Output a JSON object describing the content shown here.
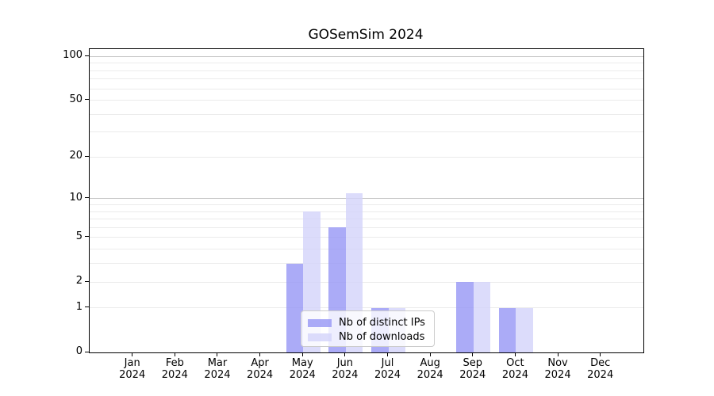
{
  "chart_data": {
    "type": "bar",
    "title": "GOSemSim 2024",
    "x_tick_year": "2024",
    "categories": [
      "Jan",
      "Feb",
      "Mar",
      "Apr",
      "May",
      "Jun",
      "Jul",
      "Aug",
      "Sep",
      "Oct",
      "Nov",
      "Dec"
    ],
    "series": [
      {
        "key": "distinct-ips",
        "name": "Nb of distinct IPs",
        "color": "rgba(150,150,245,0.8)",
        "values": [
          0,
          0,
          0,
          0,
          3,
          6,
          1,
          0,
          2,
          1,
          0,
          0
        ]
      },
      {
        "key": "downloads",
        "name": "Nb of downloads",
        "color": "rgba(211,211,250,0.8)",
        "values": [
          0,
          0,
          0,
          0,
          8,
          11,
          1,
          0,
          2,
          1,
          0,
          0
        ]
      }
    ],
    "xlabel": "",
    "ylabel": "",
    "yscale": "log1p",
    "ylim": [
      0,
      112.3
    ],
    "y_ticks": [
      0,
      1,
      2,
      5,
      10,
      20,
      50,
      100
    ],
    "gridlines": {
      "minor": [
        1,
        2,
        3,
        4,
        5,
        6,
        7,
        8,
        9,
        20,
        30,
        40,
        50,
        60,
        70,
        80,
        90
      ],
      "major": [
        10,
        100
      ]
    },
    "legend_position": "lower center",
    "grid_on": true
  },
  "colors": {
    "background": "#ffffff",
    "axis": "#000000",
    "grid_minor": "#ebebeb",
    "grid_major": "#c6c6c6",
    "legend_border": "#cccccc",
    "bar_distinct_ips": "rgba(150,150,245,0.8)",
    "bar_downloads": "rgba(211,211,250,0.8)"
  }
}
